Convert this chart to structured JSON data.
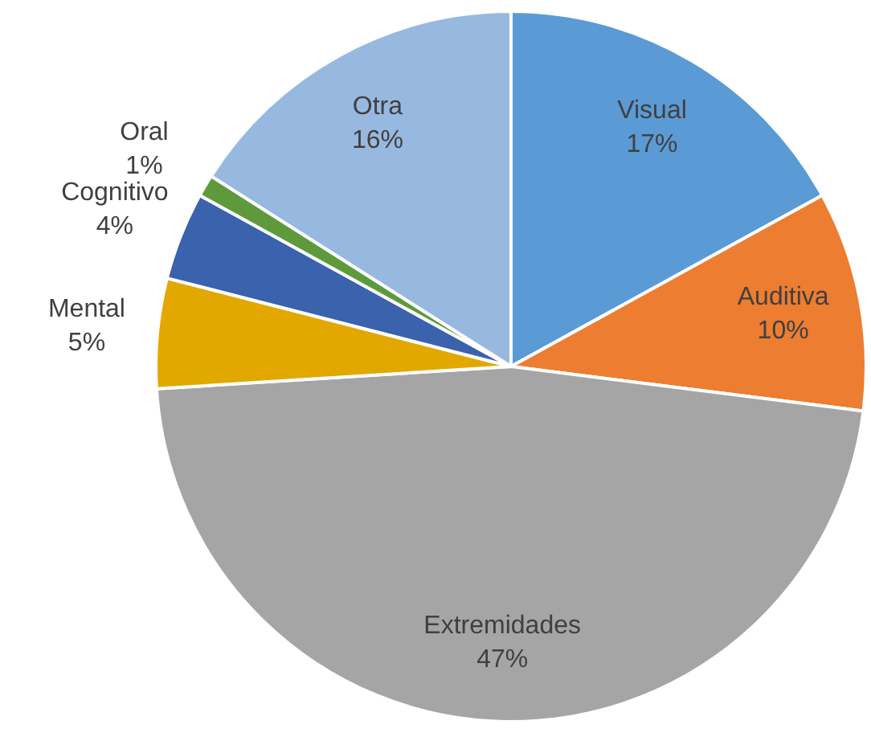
{
  "chart_data": {
    "type": "pie",
    "categories": [
      "Visual",
      "Auditiva",
      "Extremidades",
      "Mental",
      "Cognitivo",
      "Oral",
      "Otra"
    ],
    "values": [
      17,
      10,
      47,
      5,
      4,
      1,
      16
    ],
    "colors": [
      "#5b9bd5",
      "#ed7d31",
      "#a5a5a5",
      "#e2a800",
      "#3a62ad",
      "#5e9a3c",
      "#97b9e0"
    ],
    "value_labels": [
      "17%",
      "10%",
      "47%",
      "5%",
      "4%",
      "1%",
      "16%"
    ]
  }
}
